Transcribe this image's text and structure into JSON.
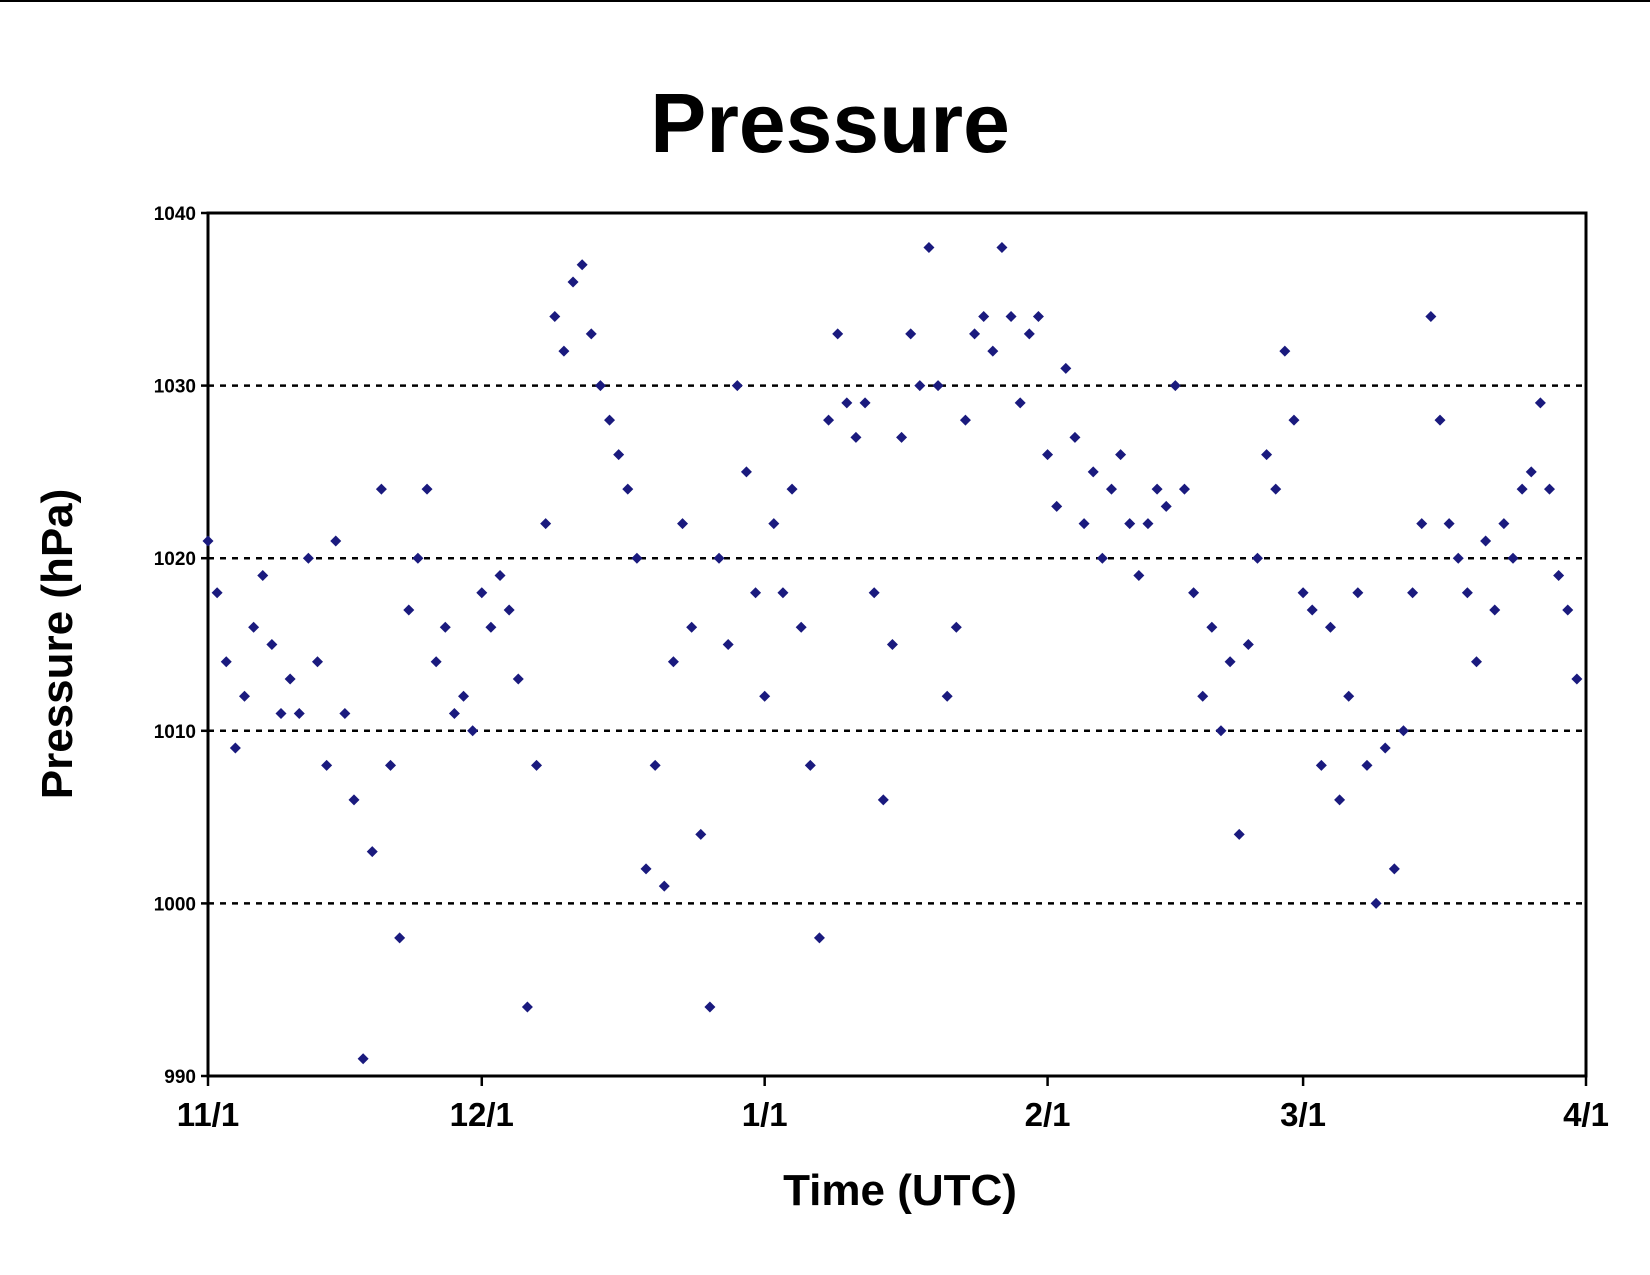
{
  "chart_data": {
    "type": "scatter",
    "title": "Pressure",
    "xlabel": "Time (UTC)",
    "ylabel": "Pressure (hPa)",
    "ylim": [
      990,
      1040
    ],
    "yticks": [
      {
        "label": "990",
        "value": 990
      },
      {
        "label": "1000",
        "value": 1000
      },
      {
        "label": "1010",
        "value": 1010
      },
      {
        "label": "1020",
        "value": 1020
      },
      {
        "label": "1030",
        "value": 1030
      },
      {
        "label": "1040",
        "value": 1040
      }
    ],
    "xlim": [
      "2000-11-01",
      "2001-04-01"
    ],
    "xticks": [
      {
        "label": "11/1",
        "date": "2000-11-01"
      },
      {
        "label": "12/1",
        "date": "2000-12-01"
      },
      {
        "label": "1/1",
        "date": "2001-01-01"
      },
      {
        "label": "2/1",
        "date": "2001-02-01"
      },
      {
        "label": "3/1",
        "date": "2001-03-01"
      },
      {
        "label": "4/1",
        "date": "2001-04-01"
      }
    ],
    "grid": "horizontal dashed at 1000, 1010, 1020, 1030",
    "legend": "none",
    "marker": "diamond",
    "color": "#1a1a7e",
    "series": [
      {
        "points": [
          [
            "2000-11-01",
            1021
          ],
          [
            "2000-11-02",
            1018
          ],
          [
            "2000-11-03",
            1014
          ],
          [
            "2000-11-04",
            1009
          ],
          [
            "2000-11-05",
            1012
          ],
          [
            "2000-11-06",
            1016
          ],
          [
            "2000-11-07",
            1019
          ],
          [
            "2000-11-08",
            1015
          ],
          [
            "2000-11-09",
            1011
          ],
          [
            "2000-11-10",
            1013
          ],
          [
            "2000-11-11",
            1011
          ],
          [
            "2000-11-12",
            1020
          ],
          [
            "2000-11-13",
            1014
          ],
          [
            "2000-11-14",
            1008
          ],
          [
            "2000-11-15",
            1021
          ],
          [
            "2000-11-16",
            1011
          ],
          [
            "2000-11-17",
            1006
          ],
          [
            "2000-11-18",
            991
          ],
          [
            "2000-11-19",
            1003
          ],
          [
            "2000-11-20",
            1024
          ],
          [
            "2000-11-21",
            1008
          ],
          [
            "2000-11-22",
            998
          ],
          [
            "2000-11-23",
            1017
          ],
          [
            "2000-11-24",
            1020
          ],
          [
            "2000-11-25",
            1024
          ],
          [
            "2000-11-26",
            1014
          ],
          [
            "2000-11-27",
            1016
          ],
          [
            "2000-11-28",
            1011
          ],
          [
            "2000-11-29",
            1012
          ],
          [
            "2000-11-30",
            1010
          ],
          [
            "2000-12-01",
            1018
          ],
          [
            "2000-12-02",
            1016
          ],
          [
            "2000-12-03",
            1019
          ],
          [
            "2000-12-04",
            1017
          ],
          [
            "2000-12-05",
            1013
          ],
          [
            "2000-12-06",
            994
          ],
          [
            "2000-12-07",
            1008
          ],
          [
            "2000-12-08",
            1022
          ],
          [
            "2000-12-09",
            1034
          ],
          [
            "2000-12-10",
            1032
          ],
          [
            "2000-12-11",
            1036
          ],
          [
            "2000-12-12",
            1037
          ],
          [
            "2000-12-13",
            1033
          ],
          [
            "2000-12-14",
            1030
          ],
          [
            "2000-12-15",
            1028
          ],
          [
            "2000-12-16",
            1026
          ],
          [
            "2000-12-17",
            1024
          ],
          [
            "2000-12-18",
            1020
          ],
          [
            "2000-12-19",
            1002
          ],
          [
            "2000-12-20",
            1008
          ],
          [
            "2000-12-21",
            1001
          ],
          [
            "2000-12-22",
            1014
          ],
          [
            "2000-12-23",
            1022
          ],
          [
            "2000-12-24",
            1016
          ],
          [
            "2000-12-25",
            1004
          ],
          [
            "2000-12-26",
            994
          ],
          [
            "2000-12-27",
            1020
          ],
          [
            "2000-12-28",
            1015
          ],
          [
            "2000-12-29",
            1030
          ],
          [
            "2000-12-30",
            1025
          ],
          [
            "2000-12-31",
            1018
          ],
          [
            "2001-01-01",
            1012
          ],
          [
            "2001-01-02",
            1022
          ],
          [
            "2001-01-03",
            1018
          ],
          [
            "2001-01-04",
            1024
          ],
          [
            "2001-01-05",
            1016
          ],
          [
            "2001-01-06",
            1008
          ],
          [
            "2001-01-07",
            998
          ],
          [
            "2001-01-08",
            1028
          ],
          [
            "2001-01-09",
            1033
          ],
          [
            "2001-01-10",
            1029
          ],
          [
            "2001-01-11",
            1027
          ],
          [
            "2001-01-12",
            1029
          ],
          [
            "2001-01-13",
            1018
          ],
          [
            "2001-01-14",
            1006
          ],
          [
            "2001-01-15",
            1015
          ],
          [
            "2001-01-16",
            1027
          ],
          [
            "2001-01-17",
            1033
          ],
          [
            "2001-01-18",
            1030
          ],
          [
            "2001-01-19",
            1038
          ],
          [
            "2001-01-20",
            1030
          ],
          [
            "2001-01-21",
            1012
          ],
          [
            "2001-01-22",
            1016
          ],
          [
            "2001-01-23",
            1028
          ],
          [
            "2001-01-24",
            1033
          ],
          [
            "2001-01-25",
            1034
          ],
          [
            "2001-01-26",
            1032
          ],
          [
            "2001-01-27",
            1038
          ],
          [
            "2001-01-28",
            1034
          ],
          [
            "2001-01-29",
            1029
          ],
          [
            "2001-01-30",
            1033
          ],
          [
            "2001-01-31",
            1034
          ],
          [
            "2001-02-01",
            1026
          ],
          [
            "2001-02-02",
            1023
          ],
          [
            "2001-02-03",
            1031
          ],
          [
            "2001-02-04",
            1027
          ],
          [
            "2001-02-05",
            1022
          ],
          [
            "2001-02-06",
            1025
          ],
          [
            "2001-02-07",
            1020
          ],
          [
            "2001-02-08",
            1024
          ],
          [
            "2001-02-09",
            1026
          ],
          [
            "2001-02-10",
            1022
          ],
          [
            "2001-02-11",
            1019
          ],
          [
            "2001-02-12",
            1022
          ],
          [
            "2001-02-13",
            1024
          ],
          [
            "2001-02-14",
            1023
          ],
          [
            "2001-02-15",
            1030
          ],
          [
            "2001-02-16",
            1024
          ],
          [
            "2001-02-17",
            1018
          ],
          [
            "2001-02-18",
            1012
          ],
          [
            "2001-02-19",
            1016
          ],
          [
            "2001-02-20",
            1010
          ],
          [
            "2001-02-21",
            1014
          ],
          [
            "2001-02-22",
            1004
          ],
          [
            "2001-02-23",
            1015
          ],
          [
            "2001-02-24",
            1020
          ],
          [
            "2001-02-25",
            1026
          ],
          [
            "2001-02-26",
            1024
          ],
          [
            "2001-02-27",
            1032
          ],
          [
            "2001-02-28",
            1028
          ],
          [
            "2001-03-01",
            1018
          ],
          [
            "2001-03-02",
            1017
          ],
          [
            "2001-03-03",
            1008
          ],
          [
            "2001-03-04",
            1016
          ],
          [
            "2001-03-05",
            1006
          ],
          [
            "2001-03-06",
            1012
          ],
          [
            "2001-03-07",
            1018
          ],
          [
            "2001-03-08",
            1008
          ],
          [
            "2001-03-09",
            1000
          ],
          [
            "2001-03-10",
            1009
          ],
          [
            "2001-03-11",
            1002
          ],
          [
            "2001-03-12",
            1010
          ],
          [
            "2001-03-13",
            1018
          ],
          [
            "2001-03-14",
            1022
          ],
          [
            "2001-03-15",
            1034
          ],
          [
            "2001-03-16",
            1028
          ],
          [
            "2001-03-17",
            1022
          ],
          [
            "2001-03-18",
            1020
          ],
          [
            "2001-03-19",
            1018
          ],
          [
            "2001-03-20",
            1014
          ],
          [
            "2001-03-21",
            1021
          ],
          [
            "2001-03-22",
            1017
          ],
          [
            "2001-03-23",
            1022
          ],
          [
            "2001-03-24",
            1020
          ],
          [
            "2001-03-25",
            1024
          ],
          [
            "2001-03-26",
            1025
          ],
          [
            "2001-03-27",
            1029
          ],
          [
            "2001-03-28",
            1024
          ],
          [
            "2001-03-29",
            1019
          ],
          [
            "2001-03-30",
            1017
          ],
          [
            "2001-03-31",
            1013
          ]
        ]
      }
    ]
  }
}
